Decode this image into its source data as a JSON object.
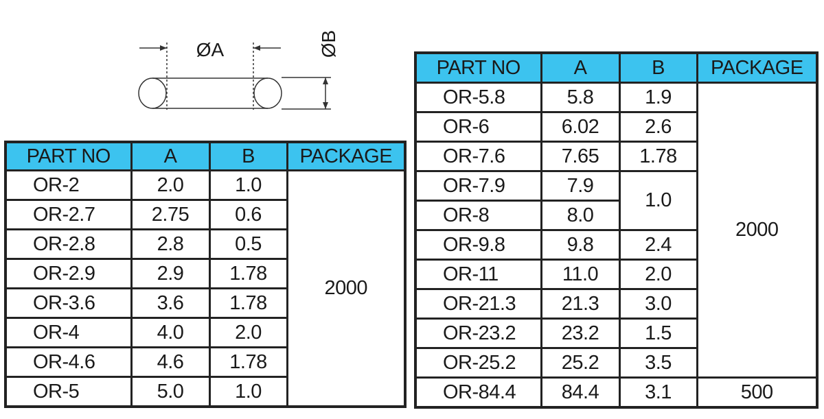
{
  "diagram": {
    "label_a": "ØA",
    "label_b": "ØB"
  },
  "left_table": {
    "header": [
      "PART NO",
      "A",
      "B",
      "PACKAGE"
    ],
    "rows": [
      [
        "OR-2",
        "2.0",
        "1.0",
        "2000"
      ],
      [
        "OR-2.7",
        "2.75",
        "0.6"
      ],
      [
        "OR-2.8",
        "2.8",
        "0.5"
      ],
      [
        "OR-2.9",
        "2.9",
        "1.78"
      ],
      [
        "OR-3.6",
        "3.6",
        "1.78"
      ],
      [
        "OR-4",
        "4.0",
        "2.0"
      ],
      [
        "OR-4.6",
        "4.6",
        "1.78"
      ],
      [
        "OR-5",
        "5.0",
        "1.0"
      ]
    ]
  },
  "right_table": {
    "header": [
      "PART NO",
      "A",
      "B",
      "PACKAGE"
    ],
    "rows": [
      [
        "OR-5.8",
        "5.8",
        "1.9",
        "2000"
      ],
      [
        "OR-6",
        "6.02",
        "2.6"
      ],
      [
        "OR-7.6",
        "7.65",
        "1.78"
      ],
      [
        "OR-7.9",
        "7.9",
        "1.0"
      ],
      [
        "OR-8",
        "8.0"
      ],
      [
        "OR-9.8",
        "9.8",
        "2.4"
      ],
      [
        "OR-11",
        "11.0",
        "2.0"
      ],
      [
        "OR-21.3",
        "21.3",
        "3.0"
      ],
      [
        "OR-23.2",
        "23.2",
        "1.5"
      ],
      [
        "OR-25.2",
        "25.2",
        "3.5"
      ],
      [
        "OR-84.4",
        "84.4",
        "3.1",
        "500"
      ]
    ]
  }
}
